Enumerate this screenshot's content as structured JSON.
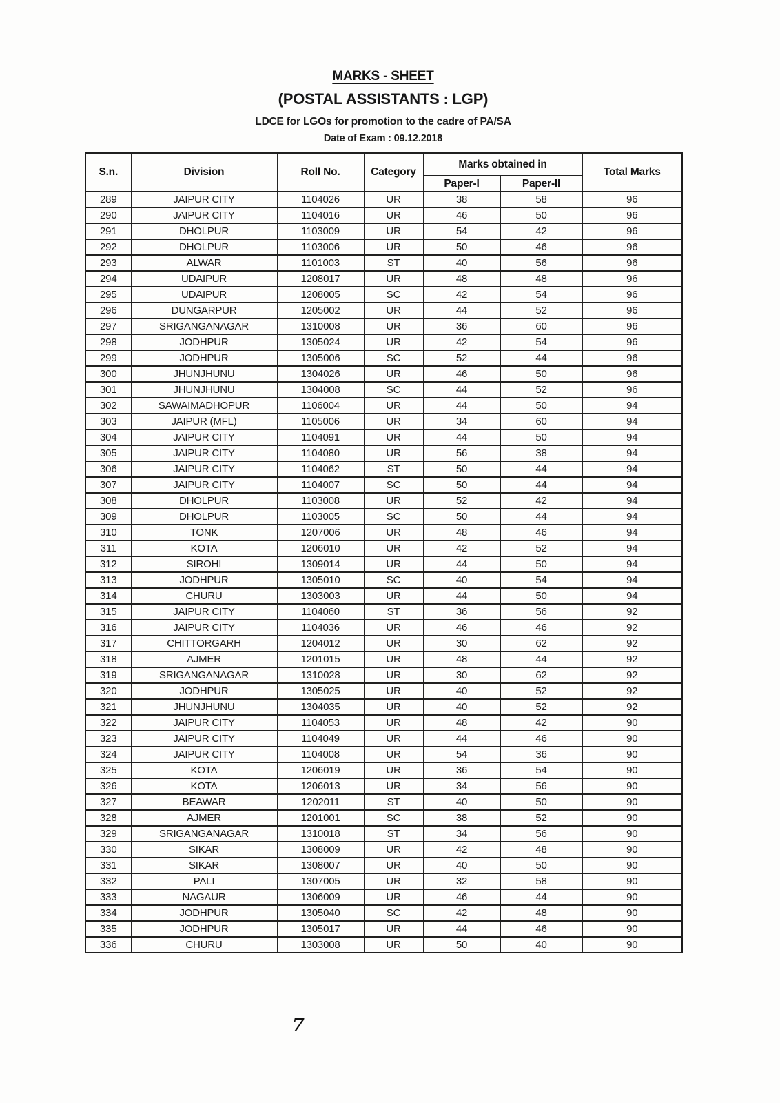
{
  "header": {
    "title": "MARKS - SHEET",
    "subtitle": "(POSTAL ASSISTANTS : LGP)",
    "exam_line": "LDCE for LGOs for promotion to the cadre of PA/SA",
    "date_line": "Date of Exam : 09.12.2018"
  },
  "table": {
    "headers": {
      "sn": "S.n.",
      "division": "Division",
      "roll_no": "Roll No.",
      "category": "Category",
      "marks_group": "Marks obtained in",
      "paper1": "Paper-I",
      "paper2": "Paper-II",
      "total": "Total Marks"
    },
    "rows": [
      [
        "289",
        "JAIPUR CITY",
        "1104026",
        "UR",
        "38",
        "58",
        "96"
      ],
      [
        "290",
        "JAIPUR CITY",
        "1104016",
        "UR",
        "46",
        "50",
        "96"
      ],
      [
        "291",
        "DHOLPUR",
        "1103009",
        "UR",
        "54",
        "42",
        "96"
      ],
      [
        "292",
        "DHOLPUR",
        "1103006",
        "UR",
        "50",
        "46",
        "96"
      ],
      [
        "293",
        "ALWAR",
        "1101003",
        "ST",
        "40",
        "56",
        "96"
      ],
      [
        "294",
        "UDAIPUR",
        "1208017",
        "UR",
        "48",
        "48",
        "96"
      ],
      [
        "295",
        "UDAIPUR",
        "1208005",
        "SC",
        "42",
        "54",
        "96"
      ],
      [
        "296",
        "DUNGARPUR",
        "1205002",
        "UR",
        "44",
        "52",
        "96"
      ],
      [
        "297",
        "SRIGANGANAGAR",
        "1310008",
        "UR",
        "36",
        "60",
        "96"
      ],
      [
        "298",
        "JODHPUR",
        "1305024",
        "UR",
        "42",
        "54",
        "96"
      ],
      [
        "299",
        "JODHPUR",
        "1305006",
        "SC",
        "52",
        "44",
        "96"
      ],
      [
        "300",
        "JHUNJHUNU",
        "1304026",
        "UR",
        "46",
        "50",
        "96"
      ],
      [
        "301",
        "JHUNJHUNU",
        "1304008",
        "SC",
        "44",
        "52",
        "96"
      ],
      [
        "302",
        "SAWAIMADHOPUR",
        "1106004",
        "UR",
        "44",
        "50",
        "94"
      ],
      [
        "303",
        "JAIPUR (MFL)",
        "1105006",
        "UR",
        "34",
        "60",
        "94"
      ],
      [
        "304",
        "JAIPUR CITY",
        "1104091",
        "UR",
        "44",
        "50",
        "94"
      ],
      [
        "305",
        "JAIPUR CITY",
        "1104080",
        "UR",
        "56",
        "38",
        "94"
      ],
      [
        "306",
        "JAIPUR CITY",
        "1104062",
        "ST",
        "50",
        "44",
        "94"
      ],
      [
        "307",
        "JAIPUR CITY",
        "1104007",
        "SC",
        "50",
        "44",
        "94"
      ],
      [
        "308",
        "DHOLPUR",
        "1103008",
        "UR",
        "52",
        "42",
        "94"
      ],
      [
        "309",
        "DHOLPUR",
        "1103005",
        "SC",
        "50",
        "44",
        "94"
      ],
      [
        "310",
        "TONK",
        "1207006",
        "UR",
        "48",
        "46",
        "94"
      ],
      [
        "311",
        "KOTA",
        "1206010",
        "UR",
        "42",
        "52",
        "94"
      ],
      [
        "312",
        "SIROHI",
        "1309014",
        "UR",
        "44",
        "50",
        "94"
      ],
      [
        "313",
        "JODHPUR",
        "1305010",
        "SC",
        "40",
        "54",
        "94"
      ],
      [
        "314",
        "CHURU",
        "1303003",
        "UR",
        "44",
        "50",
        "94"
      ],
      [
        "315",
        "JAIPUR CITY",
        "1104060",
        "ST",
        "36",
        "56",
        "92"
      ],
      [
        "316",
        "JAIPUR CITY",
        "1104036",
        "UR",
        "46",
        "46",
        "92"
      ],
      [
        "317",
        "CHITTORGARH",
        "1204012",
        "UR",
        "30",
        "62",
        "92"
      ],
      [
        "318",
        "AJMER",
        "1201015",
        "UR",
        "48",
        "44",
        "92"
      ],
      [
        "319",
        "SRIGANGANAGAR",
        "1310028",
        "UR",
        "30",
        "62",
        "92"
      ],
      [
        "320",
        "JODHPUR",
        "1305025",
        "UR",
        "40",
        "52",
        "92"
      ],
      [
        "321",
        "JHUNJHUNU",
        "1304035",
        "UR",
        "40",
        "52",
        "92"
      ],
      [
        "322",
        "JAIPUR CITY",
        "1104053",
        "UR",
        "48",
        "42",
        "90"
      ],
      [
        "323",
        "JAIPUR CITY",
        "1104049",
        "UR",
        "44",
        "46",
        "90"
      ],
      [
        "324",
        "JAIPUR CITY",
        "1104008",
        "UR",
        "54",
        "36",
        "90"
      ],
      [
        "325",
        "KOTA",
        "1206019",
        "UR",
        "36",
        "54",
        "90"
      ],
      [
        "326",
        "KOTA",
        "1206013",
        "UR",
        "34",
        "56",
        "90"
      ],
      [
        "327",
        "BEAWAR",
        "1202011",
        "ST",
        "40",
        "50",
        "90"
      ],
      [
        "328",
        "AJMER",
        "1201001",
        "SC",
        "38",
        "52",
        "90"
      ],
      [
        "329",
        "SRIGANGANAGAR",
        "1310018",
        "ST",
        "34",
        "56",
        "90"
      ],
      [
        "330",
        "SIKAR",
        "1308009",
        "UR",
        "42",
        "48",
        "90"
      ],
      [
        "331",
        "SIKAR",
        "1308007",
        "UR",
        "40",
        "50",
        "90"
      ],
      [
        "332",
        "PALI",
        "1307005",
        "UR",
        "32",
        "58",
        "90"
      ],
      [
        "333",
        "NAGAUR",
        "1306009",
        "UR",
        "46",
        "44",
        "90"
      ],
      [
        "334",
        "JODHPUR",
        "1305040",
        "SC",
        "42",
        "48",
        "90"
      ],
      [
        "335",
        "JODHPUR",
        "1305017",
        "UR",
        "44",
        "46",
        "90"
      ],
      [
        "336",
        "CHURU",
        "1303008",
        "UR",
        "50",
        "40",
        "90"
      ]
    ]
  },
  "footer": {
    "page_number": "7"
  }
}
